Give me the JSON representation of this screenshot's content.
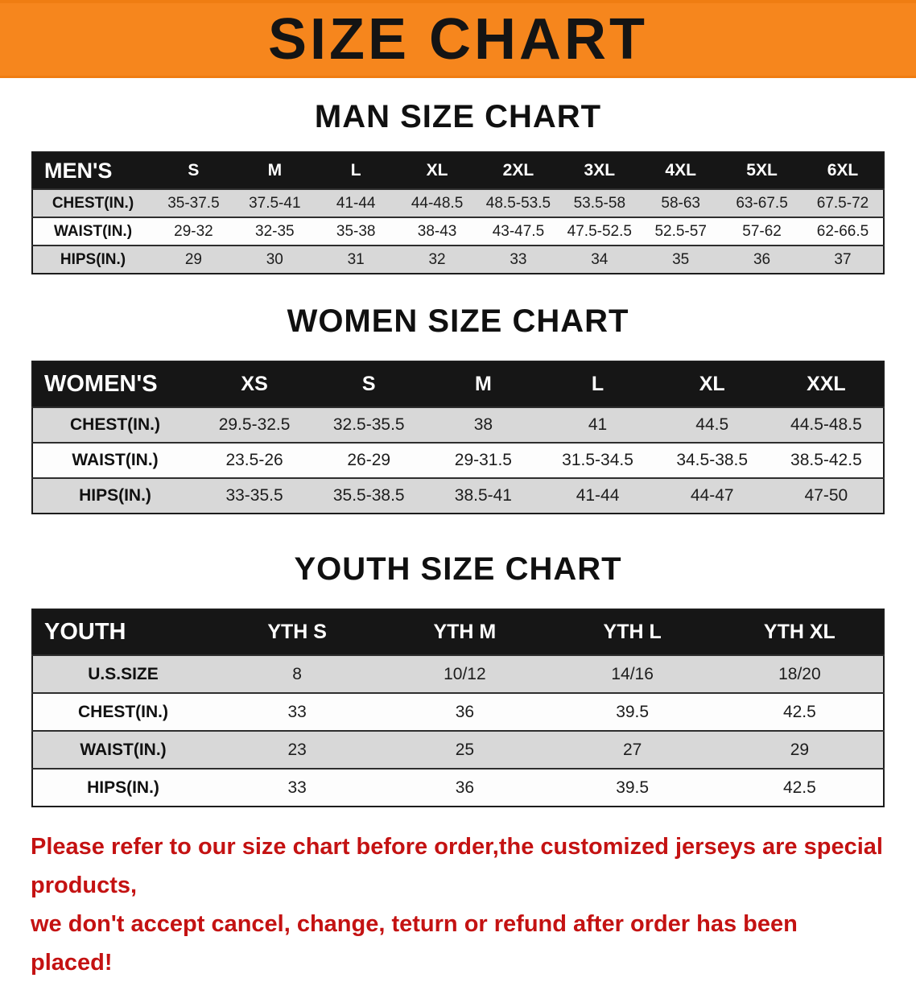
{
  "banner": {
    "title": "SIZE CHART",
    "background_color": "#f6861d",
    "title_color": "#141414"
  },
  "sections": [
    {
      "heading": "MAN SIZE CHART",
      "table": {
        "label": "MEN'S",
        "columns": [
          "S",
          "M",
          "L",
          "XL",
          "2XL",
          "3XL",
          "4XL",
          "5XL",
          "6XL"
        ],
        "rows": [
          {
            "label": "CHEST(IN.)",
            "values": [
              "35-37.5",
              "37.5-41",
              "41-44",
              "44-48.5",
              "48.5-53.5",
              "53.5-58",
              "58-63",
              "63-67.5",
              "67.5-72"
            ]
          },
          {
            "label": "WAIST(IN.)",
            "values": [
              "29-32",
              "32-35",
              "35-38",
              "38-43",
              "43-47.5",
              "47.5-52.5",
              "52.5-57",
              "57-62",
              "62-66.5"
            ]
          },
          {
            "label": "HIPS(IN.)",
            "values": [
              "29",
              "30",
              "31",
              "32",
              "33",
              "34",
              "35",
              "36",
              "37"
            ]
          }
        ]
      }
    },
    {
      "heading": "WOMEN SIZE CHART",
      "table": {
        "label": "WOMEN'S",
        "columns": [
          "XS",
          "S",
          "M",
          "L",
          "XL",
          "XXL"
        ],
        "rows": [
          {
            "label": "CHEST(IN.)",
            "values": [
              "29.5-32.5",
              "32.5-35.5",
              "38",
              "41",
              "44.5",
              "44.5-48.5"
            ]
          },
          {
            "label": "WAIST(IN.)",
            "values": [
              "23.5-26",
              "26-29",
              "29-31.5",
              "31.5-34.5",
              "34.5-38.5",
              "38.5-42.5"
            ]
          },
          {
            "label": "HIPS(IN.)",
            "values": [
              "33-35.5",
              "35.5-38.5",
              "38.5-41",
              "41-44",
              "44-47",
              "47-50"
            ]
          }
        ]
      }
    },
    {
      "heading": "YOUTH SIZE CHART",
      "table": {
        "label": "YOUTH",
        "columns": [
          "YTH S",
          "YTH M",
          "YTH L",
          "YTH XL"
        ],
        "rows": [
          {
            "label": "U.S.SIZE",
            "values": [
              "8",
              "10/12",
              "14/16",
              "18/20"
            ]
          },
          {
            "label": "CHEST(IN.)",
            "values": [
              "33",
              "36",
              "39.5",
              "42.5"
            ]
          },
          {
            "label": "WAIST(IN.)",
            "values": [
              "23",
              "25",
              "27",
              "29"
            ]
          },
          {
            "label": "HIPS(IN.)",
            "values": [
              "33",
              "36",
              "39.5",
              "42.5"
            ]
          }
        ]
      }
    }
  ],
  "footer": {
    "lines": [
      "Please refer to our size chart before order,the customized jerseys are special products,",
      "we don't accept cancel, change, teturn or refund after order has been placed!"
    ],
    "text_color": "#c41212"
  }
}
